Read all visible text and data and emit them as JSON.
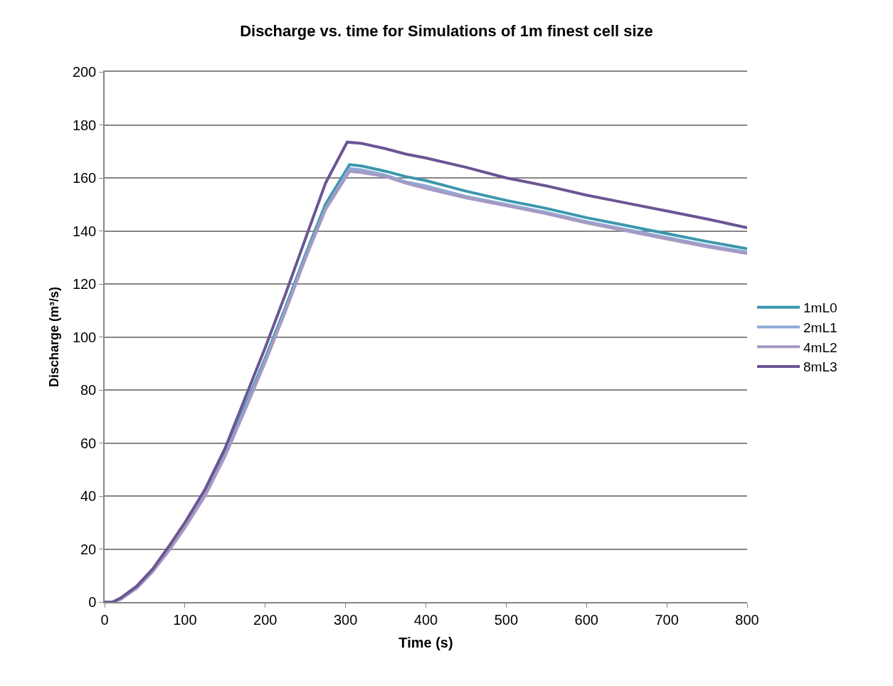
{
  "chart_data": {
    "type": "line",
    "title": "Discharge vs. time for Simulations of 1m finest cell size",
    "xlabel": "Time (s)",
    "ylabel": "Discharge (m³/s)",
    "xlim": [
      0,
      800
    ],
    "xticks": [
      0,
      100,
      200,
      300,
      400,
      500,
      600,
      700,
      800
    ],
    "ylim": [
      0,
      200
    ],
    "yticks": [
      0,
      20,
      40,
      60,
      80,
      100,
      120,
      140,
      160,
      180,
      200
    ],
    "grid": "y",
    "legend": "right",
    "marker": "none",
    "line_style": "solid",
    "series": [
      {
        "name": "1mL0",
        "color": "#3a97ad",
        "x": [
          125,
          150,
          175,
          200,
          225,
          250,
          275,
          305,
          320,
          350,
          375,
          400,
          450,
          500,
          550,
          600,
          650,
          700,
          750,
          800
        ],
        "values": [
          41,
          56,
          74,
          92,
          111,
          131,
          150,
          165,
          164.5,
          162.5,
          160.5,
          159,
          155,
          151.5,
          148.5,
          145,
          142,
          139,
          136,
          133.3
        ]
      },
      {
        "name": "2mL1",
        "color": "#8ea9d4",
        "x": [
          0,
          10,
          20,
          40,
          60,
          80,
          100,
          125,
          150,
          175,
          200,
          225,
          250,
          275,
          305,
          320,
          350,
          375,
          400,
          450,
          500,
          550,
          600,
          650,
          700,
          750,
          800
        ],
        "values": [
          0,
          0,
          1.1,
          5.3,
          11.7,
          19.6,
          28.5,
          40.5,
          55.5,
          73,
          91,
          110,
          130,
          148.5,
          163.5,
          163,
          161,
          158.5,
          157,
          153,
          150,
          147,
          143.5,
          140.5,
          137.5,
          134.5,
          132
        ]
      },
      {
        "name": "4mL2",
        "color": "#a699c3",
        "x": [
          0,
          10,
          20,
          40,
          60,
          80,
          100,
          125,
          150,
          175,
          200,
          225,
          250,
          275,
          305,
          320,
          350,
          375,
          400,
          450,
          500,
          550,
          600,
          650,
          700,
          750,
          800
        ],
        "values": [
          0,
          0,
          1,
          5.2,
          11.5,
          19.3,
          28,
          40,
          55,
          72.5,
          90.5,
          109.5,
          129.5,
          148,
          162.5,
          162,
          160.5,
          158,
          156,
          152.5,
          149.5,
          146.5,
          143,
          140,
          137,
          134,
          131.5
        ]
      },
      {
        "name": "8mL3",
        "color": "#6b5594",
        "x": [
          0,
          10,
          20,
          40,
          60,
          80,
          100,
          125,
          150,
          175,
          200,
          225,
          250,
          275,
          302,
          320,
          350,
          375,
          400,
          450,
          500,
          550,
          600,
          650,
          700,
          750,
          800
        ],
        "values": [
          0,
          0,
          1.5,
          6,
          12.5,
          21,
          30,
          42.5,
          58,
          77,
          96,
          116,
          137,
          158,
          173.5,
          173,
          171,
          169,
          167.5,
          164,
          160,
          157,
          153.5,
          150.5,
          147.5,
          144.5,
          141.2
        ]
      }
    ]
  }
}
